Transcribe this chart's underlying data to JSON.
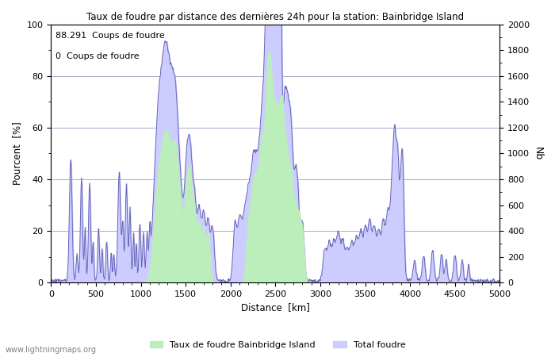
{
  "title": "Taux de foudre par distance des dernières 24h pour la station: Bainbridge Island",
  "xlabel": "Distance  [km]",
  "ylabel_left": "Pourcent  [%]",
  "ylabel_right": "Nb",
  "annotation_line1": "88.291  Coups de foudre",
  "annotation_line2": "0  Coups de foudre",
  "watermark": "www.lightningmaps.org",
  "legend_label1": "Taux de foudre Bainbridge Island",
  "legend_label2": "Total foudre",
  "xlim": [
    0,
    5000
  ],
  "ylim_left": [
    0,
    100
  ],
  "ylim_right": [
    0,
    2000
  ],
  "xticks": [
    0,
    500,
    1000,
    1500,
    2000,
    2500,
    3000,
    3500,
    4000,
    4500,
    5000
  ],
  "yticks_left": [
    0,
    20,
    40,
    60,
    80,
    100
  ],
  "yticks_right": [
    0,
    200,
    400,
    600,
    800,
    1000,
    1200,
    1400,
    1600,
    1800,
    2000
  ],
  "fill_color_green": "#bbeebb",
  "fill_color_blue": "#ccccff",
  "line_color": "#6666bb",
  "background_color": "#ffffff",
  "grid_color": "#aaaacc",
  "figsize": [
    7.0,
    4.5
  ],
  "dpi": 100
}
